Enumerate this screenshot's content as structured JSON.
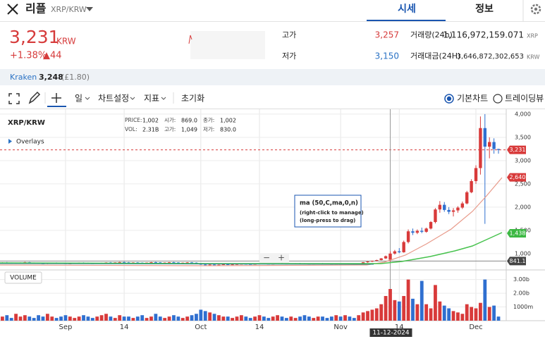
{
  "header": {
    "name": "리플",
    "pair": "XRP/KRW",
    "tabs": [
      "시세",
      "정보"
    ]
  },
  "quote": {
    "price": "3,231",
    "unit": "KRW",
    "change": "+1.38%",
    "change_amount": "▲44",
    "high_label": "고가",
    "high": "3,257",
    "low_label": "저가",
    "low": "3,150",
    "volume_label": "거래량(24h)",
    "volume": "1,116,972,159.071",
    "volume_unit": "XRP",
    "turnover_label": "거래대금(24H)",
    "turnover": "3,646,872,302,653",
    "turnover_unit": "KRW"
  },
  "exchange": {
    "name": "Kraken",
    "price": "3,248",
    "gbp": "(£1.80)"
  },
  "toolbar": {
    "period": "일",
    "settings": "차트설정",
    "indicators": "지표",
    "reset": "초기화",
    "basic": "기본차트",
    "tradingview": "트레이딩뷰"
  },
  "chart_data": {
    "type": "candlestick",
    "symbol": "XRP/KRW",
    "overlays": "Overlays",
    "volume_button": "VOLUME",
    "info": [
      {
        "label": "PRICE:",
        "value": "1,002"
      },
      {
        "label": "시가:",
        "value": "869.0"
      },
      {
        "label": "종가:",
        "value": "1,002"
      },
      {
        "label": "VOL:",
        "value": "2.31B"
      },
      {
        "label": "고가:",
        "value": "1,049"
      },
      {
        "label": "저가:",
        "value": "830.0"
      }
    ],
    "indicator": {
      "title": "ma (50,C,ma,0,n)",
      "hint1": "(right-click to manage)",
      "hint2": "(long-press to drag)"
    },
    "zoom": [
      "−",
      "+"
    ],
    "crosshair": "11-12-2024",
    "up_color": "#d83a3a",
    "down_color": "#2f6fd0",
    "xlim": [
      "2024-08-18",
      "2024-12-06"
    ],
    "xticks": [
      {
        "value": "2024-09-01",
        "label": "Sep"
      },
      {
        "value": "2024-09-14",
        "label": "14"
      },
      {
        "value": "2024-10-01",
        "label": "Oct"
      },
      {
        "value": "2024-10-14",
        "label": "14"
      },
      {
        "value": "2024-11-01",
        "label": "Nov"
      },
      {
        "value": "2024-11-14",
        "label": "14"
      },
      {
        "value": "2024-12-01",
        "label": "Dec"
      }
    ],
    "ylim": [
      650,
      4105
    ],
    "yticks": [
      {
        "value": 1000,
        "label": "1,000"
      },
      {
        "value": 1500,
        "label": "1,500"
      },
      {
        "value": 2000,
        "label": "2,000"
      },
      {
        "value": 2500,
        "label": "2,500"
      },
      {
        "value": 3000,
        "label": "3,000"
      },
      {
        "value": 3500,
        "label": "3,500"
      },
      {
        "value": 4000,
        "label": "4,000"
      }
    ],
    "price_flags": [
      {
        "value": 3231,
        "label": "3,231",
        "color": "#d83a3a",
        "line": "dashed"
      },
      {
        "value": 2640,
        "label": "2,640",
        "color": "#d83a3a"
      },
      {
        "value": 1438,
        "label": "1,438",
        "color": "#3cb843"
      },
      {
        "value": 841.1,
        "label": "841.1",
        "color": "#444444",
        "line": "solid"
      }
    ],
    "vlim": [
      0,
      3.7
    ],
    "vticks": [
      {
        "value": 1,
        "label": "1000m"
      },
      {
        "value": 2,
        "label": "2.00b"
      },
      {
        "value": 3,
        "label": "3.00b"
      }
    ],
    "candles": [
      [
        800,
        815,
        790,
        805
      ],
      [
        805,
        820,
        795,
        798
      ],
      [
        798,
        810,
        785,
        792
      ],
      [
        792,
        805,
        780,
        800
      ],
      [
        800,
        812,
        792,
        808
      ],
      [
        808,
        825,
        800,
        815
      ],
      [
        815,
        822,
        800,
        803
      ],
      [
        803,
        810,
        790,
        795
      ],
      [
        795,
        805,
        785,
        790
      ],
      [
        790,
        800,
        778,
        785
      ],
      [
        785,
        798,
        775,
        795
      ],
      [
        795,
        808,
        788,
        802
      ],
      [
        802,
        812,
        795,
        798
      ],
      [
        798,
        806,
        788,
        792
      ],
      [
        792,
        800,
        780,
        785
      ],
      [
        785,
        795,
        775,
        790
      ],
      [
        790,
        802,
        785,
        798
      ],
      [
        798,
        810,
        790,
        805
      ],
      [
        805,
        812,
        795,
        800
      ],
      [
        800,
        808,
        788,
        792
      ],
      [
        792,
        800,
        782,
        788
      ],
      [
        788,
        798,
        780,
        795
      ],
      [
        795,
        806,
        790,
        802
      ],
      [
        802,
        815,
        798,
        810
      ],
      [
        810,
        820,
        802,
        806
      ],
      [
        806,
        814,
        798,
        812
      ],
      [
        812,
        825,
        806,
        818
      ],
      [
        818,
        828,
        808,
        812
      ],
      [
        812,
        820,
        800,
        805
      ],
      [
        805,
        815,
        798,
        810
      ],
      [
        810,
        818,
        800,
        806
      ],
      [
        806,
        812,
        795,
        800
      ],
      [
        800,
        810,
        792,
        808
      ],
      [
        808,
        822,
        802,
        816
      ],
      [
        816,
        826,
        808,
        812
      ],
      [
        812,
        818,
        800,
        804
      ],
      [
        804,
        812,
        795,
        808
      ],
      [
        808,
        820,
        802,
        815
      ],
      [
        815,
        824,
        806,
        810
      ],
      [
        810,
        816,
        798,
        802
      ],
      [
        802,
        810,
        792,
        806
      ],
      [
        806,
        818,
        800,
        812
      ],
      [
        812,
        820,
        802,
        806
      ],
      [
        806,
        812,
        790,
        795
      ],
      [
        795,
        800,
        760,
        765
      ],
      [
        765,
        775,
        750,
        758
      ],
      [
        758,
        770,
        748,
        765
      ],
      [
        765,
        772,
        752,
        755
      ],
      [
        755,
        768,
        750,
        762
      ],
      [
        762,
        775,
        756,
        770
      ],
      [
        770,
        778,
        760,
        765
      ],
      [
        765,
        772,
        755,
        768
      ],
      [
        768,
        780,
        762,
        775
      ],
      [
        775,
        785,
        768,
        780
      ],
      [
        780,
        790,
        772,
        776
      ],
      [
        776,
        784,
        768,
        772
      ],
      [
        772,
        782,
        766,
        778
      ],
      [
        778,
        790,
        772,
        786
      ],
      [
        786,
        795,
        778,
        782
      ],
      [
        782,
        790,
        772,
        776
      ],
      [
        776,
        786,
        770,
        782
      ],
      [
        782,
        794,
        776,
        790
      ],
      [
        790,
        798,
        780,
        785
      ],
      [
        785,
        792,
        776,
        780
      ],
      [
        780,
        790,
        772,
        786
      ],
      [
        786,
        796,
        780,
        792
      ],
      [
        792,
        800,
        784,
        788
      ],
      [
        788,
        796,
        778,
        782
      ],
      [
        782,
        790,
        772,
        778
      ],
      [
        778,
        788,
        770,
        784
      ],
      [
        784,
        794,
        778,
        790
      ],
      [
        790,
        798,
        782,
        786
      ],
      [
        786,
        794,
        776,
        780
      ],
      [
        780,
        790,
        770,
        776
      ],
      [
        776,
        786,
        768,
        782
      ],
      [
        782,
        790,
        772,
        778
      ],
      [
        778,
        788,
        770,
        784
      ],
      [
        784,
        792,
        776,
        780
      ],
      [
        780,
        788,
        770,
        775
      ],
      [
        775,
        790,
        768,
        786
      ],
      [
        786,
        820,
        780,
        815
      ],
      [
        815,
        840,
        805,
        832
      ],
      [
        832,
        850,
        820,
        845
      ],
      [
        845,
        870,
        838,
        862
      ],
      [
        862,
        905,
        855,
        898
      ],
      [
        898,
        960,
        885,
        945
      ],
      [
        869,
        1049,
        830,
        1002
      ],
      [
        1002,
        1080,
        980,
        1050
      ],
      [
        1050,
        1120,
        1010,
        1030
      ],
      [
        1030,
        1280,
        1020,
        1250
      ],
      [
        1250,
        1520,
        1220,
        1480
      ],
      [
        1480,
        1540,
        1400,
        1450
      ],
      [
        1450,
        1520,
        1420,
        1490
      ],
      [
        1490,
        1560,
        1440,
        1470
      ],
      [
        1470,
        1560,
        1450,
        1540
      ],
      [
        1540,
        1700,
        1520,
        1680
      ],
      [
        1680,
        1980,
        1650,
        1950
      ],
      [
        1950,
        2130,
        1880,
        2050
      ],
      [
        2050,
        2110,
        1900,
        1940
      ],
      [
        1940,
        2000,
        1850,
        1900
      ],
      [
        1900,
        1980,
        1800,
        1930
      ],
      [
        1930,
        2020,
        1880,
        1990
      ],
      [
        1990,
        2120,
        1960,
        2080
      ],
      [
        2080,
        2350,
        2060,
        2320
      ],
      [
        2320,
        2600,
        2300,
        2560
      ],
      [
        2560,
        2900,
        2500,
        2840
      ],
      [
        2840,
        3950,
        2700,
        3700
      ],
      [
        3700,
        4000,
        1640,
        3300
      ],
      [
        3300,
        3500,
        3050,
        3400
      ],
      [
        3400,
        3480,
        3150,
        3250
      ],
      [
        3250,
        3257,
        3150,
        3231
      ]
    ],
    "volumes": [
      0.3,
      0.4,
      0.2,
      0.5,
      0.3,
      0.4,
      0.3,
      0.2,
      0.4,
      0.3,
      0.5,
      0.3,
      0.2,
      0.3,
      0.4,
      0.3,
      0.2,
      0.3,
      0.4,
      0.3,
      0.2,
      0.3,
      0.4,
      0.5,
      0.3,
      0.2,
      0.4,
      0.3,
      0.3,
      0.2,
      0.3,
      0.4,
      0.2,
      0.3,
      0.5,
      0.3,
      0.2,
      0.3,
      0.4,
      0.3,
      0.2,
      0.3,
      0.4,
      0.5,
      0.8,
      0.7,
      0.6,
      0.5,
      0.4,
      0.3,
      0.3,
      0.2,
      0.3,
      0.4,
      0.3,
      0.2,
      0.3,
      0.4,
      0.3,
      0.2,
      0.3,
      0.4,
      0.3,
      0.2,
      0.3,
      0.2,
      0.3,
      0.4,
      0.3,
      0.2,
      0.3,
      0.3,
      0.2,
      0.3,
      0.4,
      0.3,
      0.4,
      0.3,
      0.2,
      0.4,
      0.6,
      0.7,
      0.8,
      0.9,
      1.2,
      1.8,
      2.31,
      1.5,
      1.4,
      1.8,
      3.0,
      1.6,
      1.2,
      2.9,
      1.2,
      0.9,
      2.6,
      1.4,
      1.1,
      0.9,
      0.7,
      0.6,
      0.5,
      1.2,
      1.0,
      0.9,
      1.3,
      3.0,
      1.0,
      1.1,
      0.3
    ]
  }
}
